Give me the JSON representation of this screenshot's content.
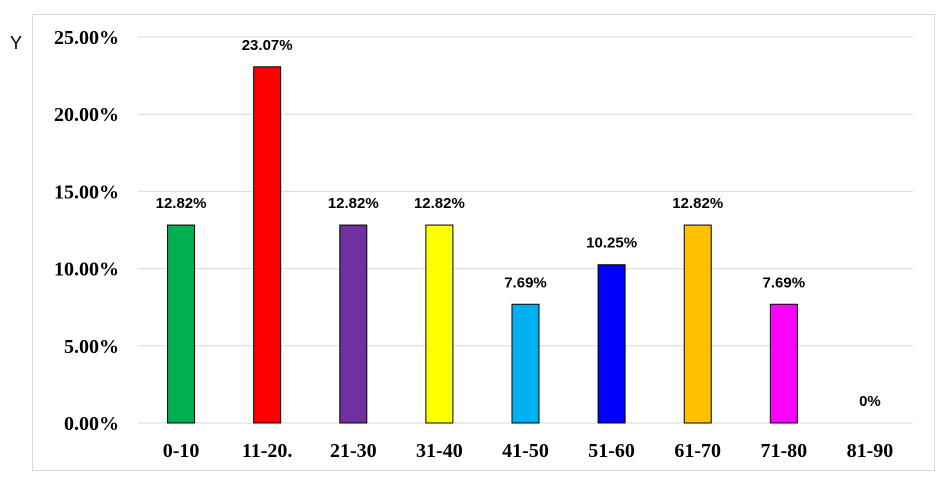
{
  "chart_data": {
    "type": "bar",
    "ylabel": "Y",
    "categories": [
      "0-10",
      "11-20.",
      "21-30",
      "31-40",
      "41-50",
      "51-60",
      "61-70",
      "71-80",
      "81-90"
    ],
    "values": [
      12.82,
      23.07,
      12.82,
      12.82,
      7.69,
      10.25,
      12.82,
      7.69,
      0
    ],
    "data_labels": [
      "12.82%",
      "23.07%",
      "12.82%",
      "12.82%",
      "7.69%",
      "10.25%",
      "12.82%",
      "7.69%",
      "0%"
    ],
    "colors": [
      "#00b050",
      "#ff0000",
      "#7030a0",
      "#ffff00",
      "#00b0f0",
      "#0000ff",
      "#ffc000",
      "#ff00ff",
      "#ffffff"
    ],
    "yticks": [
      0,
      5,
      10,
      15,
      20,
      25
    ],
    "ytick_labels": [
      "0.00%",
      "5.00%",
      "10.00%",
      "15.00%",
      "20.00%",
      "25.00%"
    ],
    "ylim": [
      0,
      25
    ],
    "grid": true,
    "legend": "none"
  }
}
